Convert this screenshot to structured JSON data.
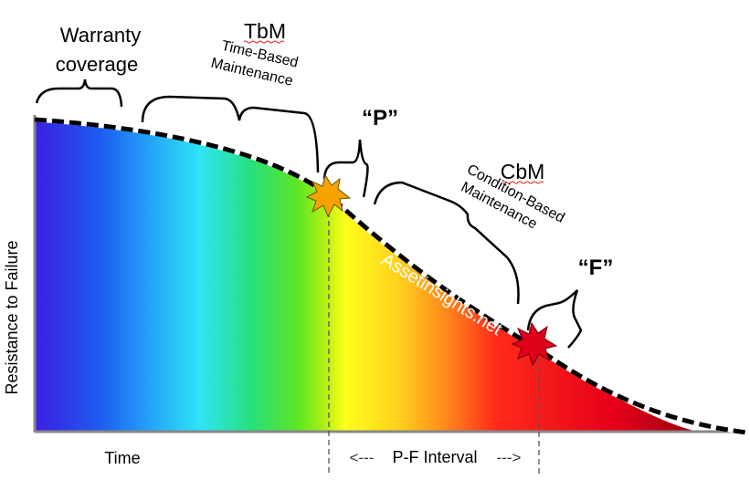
{
  "labels": {
    "warranty_line1": "Warranty",
    "warranty_line2": "coverage",
    "tbm_title": "TbM",
    "tbm_line1": "Time-Based",
    "tbm_line2": "Maintenance",
    "p_label": "“P”",
    "cbm_title": "CbM",
    "cbm_line1": "Condition-Based",
    "cbm_line2": "Maintenance",
    "f_label": "“F”",
    "watermark": "Assetinsights.net",
    "y_axis": "Resistance to Failure",
    "x_axis": "Time",
    "pf_interval": "P-F Interval",
    "pf_left_arrow": "<---",
    "pf_right_arrow": "--->"
  },
  "colors": {
    "curve": "#000000",
    "p_star": "#f5a300",
    "f_star": "#e0001a",
    "axis": "#888888",
    "spectrum": [
      "#3a1fe0",
      "#1f5cf0",
      "#23a8f8",
      "#2ee4f5",
      "#27e07a",
      "#5ee620",
      "#b4ef16",
      "#ffff1a",
      "#ffd21e",
      "#ff8c1c",
      "#ff2a1a",
      "#e6001a",
      "#b00012"
    ]
  }
}
